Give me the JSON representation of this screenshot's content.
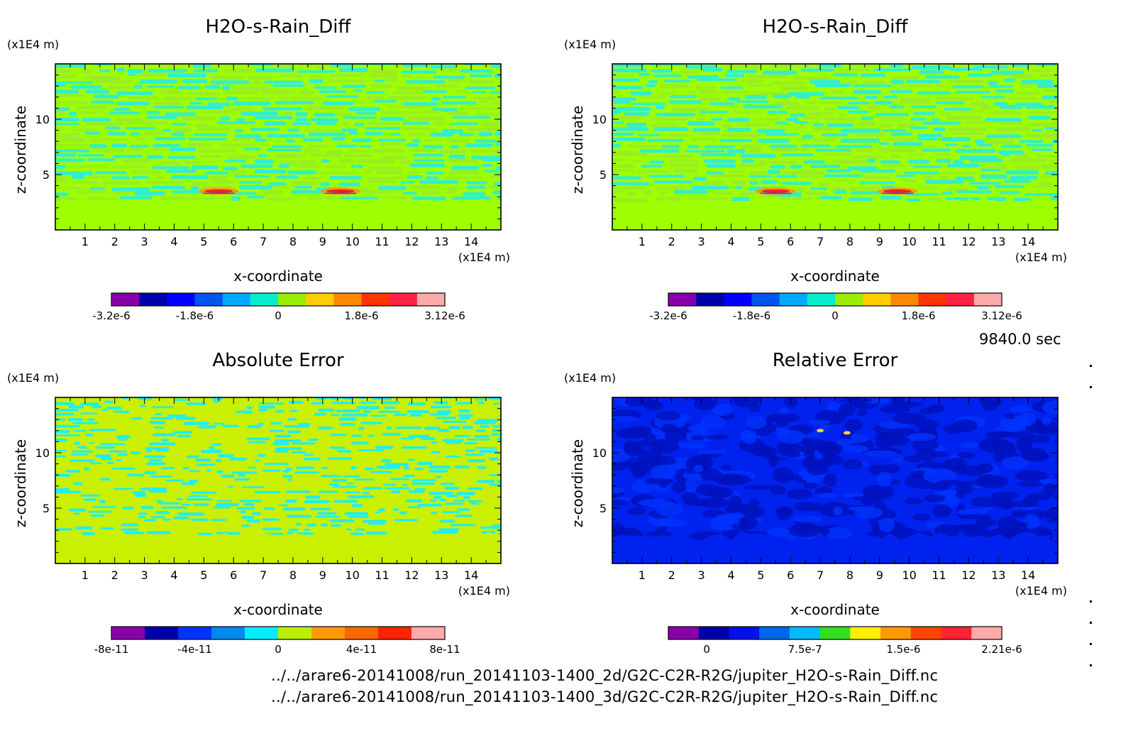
{
  "timestamp": "9840.0 sec",
  "footer": {
    "line1": "../../arare6-20141008/run_20141103-1400_2d/G2C-C2R-R2G/jupiter_H2O-s-Rain_Diff.nc",
    "line2": "../../arare6-20141008/run_20141103-1400_3d/G2C-C2R-R2G/jupiter_H2O-s-Rain_Diff.nc"
  },
  "chart_data": [
    {
      "type": "heatmap",
      "title": "H2O-s-Rain_Diff",
      "xlabel": "x-coordinate",
      "ylabel": "z-coordinate",
      "x_unit": "(x1E4 m)",
      "y_unit": "(x1E4 m)",
      "xlim": [
        0,
        15
      ],
      "ylim": [
        0,
        15
      ],
      "x_ticks": [
        "1",
        "2",
        "3",
        "4",
        "5",
        "6",
        "7",
        "8",
        "9",
        "10",
        "11",
        "12",
        "13",
        "14"
      ],
      "y_ticks": [
        "5",
        "10"
      ],
      "pattern": "mixed",
      "background_color": "#9eff00",
      "stripe_colors": [
        "#33eecc",
        "#99ee22"
      ],
      "hotspots": [
        [
          5.5,
          3.5
        ],
        [
          9.6,
          3.5
        ]
      ],
      "colorbar": {
        "colors": [
          "#8800aa",
          "#0000aa",
          "#0000ff",
          "#0055ee",
          "#00aaff",
          "#00eecc",
          "#99ee00",
          "#ffcc00",
          "#ff8800",
          "#ff3300",
          "#ff2244",
          "#ffaaaa"
        ],
        "tick_labels": [
          "-3.2e-6",
          "-1.8e-6",
          "0",
          "1.8e-6",
          "3.12e-6"
        ]
      }
    },
    {
      "type": "heatmap",
      "title": "H2O-s-Rain_Diff",
      "xlabel": "x-coordinate",
      "ylabel": "z-coordinate",
      "x_unit": "(x1E4 m)",
      "y_unit": "(x1E4 m)",
      "xlim": [
        0,
        15
      ],
      "ylim": [
        0,
        15
      ],
      "x_ticks": [
        "1",
        "2",
        "3",
        "4",
        "5",
        "6",
        "7",
        "8",
        "9",
        "10",
        "11",
        "12",
        "13",
        "14"
      ],
      "y_ticks": [
        "5",
        "10"
      ],
      "pattern": "mixed",
      "background_color": "#9eff00",
      "stripe_colors": [
        "#33eecc",
        "#99ee22"
      ],
      "hotspots": [
        [
          5.5,
          3.5
        ],
        [
          9.6,
          3.5
        ]
      ],
      "colorbar": {
        "colors": [
          "#8800aa",
          "#0000aa",
          "#0000ff",
          "#0055ee",
          "#00aaff",
          "#00eecc",
          "#99ee00",
          "#ffcc00",
          "#ff8800",
          "#ff3300",
          "#ff2244",
          "#ffaaaa"
        ],
        "tick_labels": [
          "-3.2e-6",
          "-1.8e-6",
          "0",
          "1.8e-6",
          "3.12e-6"
        ]
      }
    },
    {
      "type": "heatmap",
      "title": "Absolute Error",
      "xlabel": "x-coordinate",
      "ylabel": "z-coordinate",
      "x_unit": "(x1E4 m)",
      "y_unit": "(x1E4 m)",
      "xlim": [
        0,
        15
      ],
      "ylim": [
        0,
        15
      ],
      "x_ticks": [
        "1",
        "2",
        "3",
        "4",
        "5",
        "6",
        "7",
        "8",
        "9",
        "10",
        "11",
        "12",
        "13",
        "14"
      ],
      "y_ticks": [
        "5",
        "10"
      ],
      "pattern": "dense",
      "background_color": "#c8f000",
      "stripe_colors": [
        "#22eeee",
        "#c8f000"
      ],
      "hotspots": [],
      "colorbar": {
        "colors": [
          "#8800aa",
          "#0000aa",
          "#0033ff",
          "#0088ee",
          "#00eeff",
          "#bbee00",
          "#ff9900",
          "#ff6600",
          "#ff2200",
          "#ffaaaa"
        ],
        "tick_labels": [
          "-8e-11",
          "-4e-11",
          "0",
          "4e-11",
          "8e-11"
        ]
      }
    },
    {
      "type": "heatmap",
      "title": "Relative Error",
      "xlabel": "x-coordinate",
      "ylabel": "z-coordinate",
      "x_unit": "(x1E4 m)",
      "y_unit": "(x1E4 m)",
      "xlim": [
        0,
        15
      ],
      "ylim": [
        0,
        15
      ],
      "x_ticks": [
        "1",
        "2",
        "3",
        "4",
        "5",
        "6",
        "7",
        "8",
        "9",
        "10",
        "11",
        "12",
        "13",
        "14"
      ],
      "y_ticks": [
        "5",
        "10"
      ],
      "pattern": "blobs",
      "background_color": "#0022ee",
      "stripe_colors": [
        "#0011bb",
        "#0033ff"
      ],
      "hotspots": [
        [
          7.0,
          12.0
        ],
        [
          7.9,
          11.8
        ]
      ],
      "colorbar": {
        "colors": [
          "#8800aa",
          "#0000aa",
          "#0011ee",
          "#0066ee",
          "#00bbff",
          "#33dd22",
          "#ffee00",
          "#ff9900",
          "#ff4400",
          "#ff2233",
          "#ffaaaa"
        ],
        "tick_labels": [
          "0",
          "7.5e-7",
          "1.5e-6",
          "2.21e-6"
        ]
      }
    }
  ]
}
